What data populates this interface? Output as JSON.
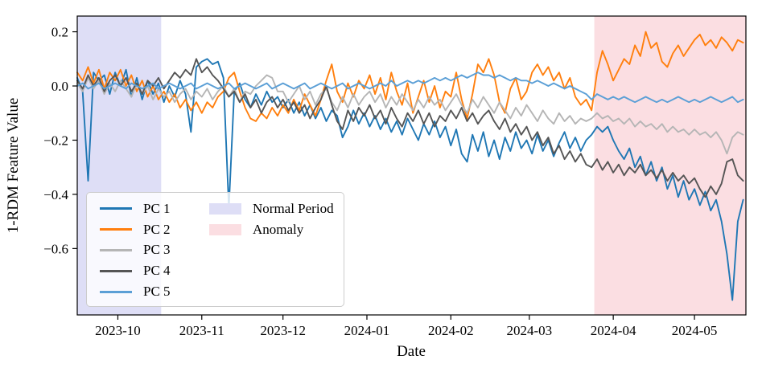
{
  "chart_data": {
    "type": "line",
    "title": "",
    "xlabel": "Date",
    "ylabel": "1-RDM Feature Value",
    "grid": false,
    "legend_position": "lower left",
    "x_start_date": "2023-09-16",
    "x_end_date": "2024-05-20",
    "x_total_days": 247,
    "sample_interval_days": 2,
    "x_tick_labels": [
      "2023-10",
      "2023-11",
      "2023-12",
      "2024-01",
      "2024-02",
      "2024-03",
      "2024-04",
      "2024-05"
    ],
    "x_tick_day_offsets": [
      15,
      46,
      76,
      107,
      138,
      167,
      198,
      228
    ],
    "y_ticks": [
      0.2,
      0.0,
      -0.2,
      -0.4,
      -0.6
    ],
    "y_tick_labels": [
      "0.2",
      "0.0",
      "−0.2",
      "−0.4",
      "−0.6"
    ],
    "ylim": [
      -0.845,
      0.258
    ],
    "bands": [
      {
        "name": "Normal Period",
        "color": "#dedef6",
        "start_day": 0,
        "end_day": 31,
        "start_date": "2023-09-16",
        "end_date": "2023-10-17"
      },
      {
        "name": "Anomaly",
        "color": "#fbdee2",
        "start_day": 191,
        "end_day": 247,
        "start_date": "2024-03-25",
        "end_date": "2024-05-20"
      }
    ],
    "series": [
      {
        "name": "PC 1",
        "color": "#1f77b4",
        "values": [
          0.03,
          -0.02,
          -0.35,
          0.05,
          0.02,
          0.04,
          -0.03,
          0.05,
          0.0,
          0.06,
          -0.04,
          0.03,
          -0.05,
          0.02,
          -0.03,
          0.01,
          -0.06,
          0.0,
          -0.04,
          0.02,
          -0.03,
          -0.17,
          0.07,
          0.09,
          0.1,
          0.08,
          0.09,
          0.03,
          -0.45,
          -0.02,
          0.01,
          -0.05,
          -0.08,
          -0.03,
          -0.07,
          -0.02,
          -0.06,
          -0.04,
          -0.08,
          -0.05,
          -0.1,
          -0.06,
          -0.11,
          -0.07,
          -0.12,
          -0.08,
          -0.13,
          -0.09,
          -0.11,
          -0.19,
          -0.15,
          -0.09,
          -0.14,
          -0.1,
          -0.15,
          -0.11,
          -0.16,
          -0.12,
          -0.17,
          -0.13,
          -0.18,
          -0.12,
          -0.16,
          -0.2,
          -0.14,
          -0.18,
          -0.13,
          -0.19,
          -0.15,
          -0.22,
          -0.16,
          -0.25,
          -0.28,
          -0.18,
          -0.24,
          -0.17,
          -0.26,
          -0.2,
          -0.27,
          -0.19,
          -0.24,
          -0.17,
          -0.23,
          -0.2,
          -0.25,
          -0.18,
          -0.24,
          -0.2,
          -0.26,
          -0.21,
          -0.17,
          -0.23,
          -0.19,
          -0.24,
          -0.2,
          -0.18,
          -0.15,
          -0.17,
          -0.15,
          -0.2,
          -0.24,
          -0.27,
          -0.23,
          -0.3,
          -0.26,
          -0.33,
          -0.28,
          -0.35,
          -0.3,
          -0.38,
          -0.33,
          -0.41,
          -0.35,
          -0.42,
          -0.38,
          -0.44,
          -0.39,
          -0.46,
          -0.42,
          -0.5,
          -0.62,
          -0.79,
          -0.5,
          -0.42
        ]
      },
      {
        "name": "PC 2",
        "color": "#ff7f0e",
        "values": [
          0.05,
          0.02,
          0.07,
          0.01,
          0.06,
          -0.01,
          0.05,
          0.02,
          0.06,
          0.0,
          0.04,
          -0.02,
          0.02,
          -0.04,
          0.0,
          -0.05,
          -0.02,
          -0.06,
          -0.03,
          -0.08,
          -0.05,
          -0.09,
          -0.06,
          -0.1,
          -0.06,
          -0.08,
          -0.04,
          -0.02,
          0.03,
          0.05,
          -0.02,
          -0.08,
          -0.12,
          -0.13,
          -0.1,
          -0.12,
          -0.08,
          -0.11,
          -0.07,
          -0.1,
          -0.05,
          -0.09,
          -0.03,
          -0.07,
          -0.11,
          -0.05,
          0.02,
          0.08,
          -0.02,
          -0.06,
          0.01,
          -0.04,
          0.02,
          -0.01,
          0.04,
          -0.03,
          0.03,
          -0.05,
          0.05,
          -0.02,
          -0.07,
          0.01,
          -0.1,
          -0.04,
          0.02,
          -0.06,
          0.0,
          -0.08,
          -0.02,
          -0.04,
          0.05,
          -0.05,
          -0.12,
          -0.03,
          0.08,
          0.05,
          0.1,
          0.04,
          -0.06,
          -0.1,
          -0.01,
          0.03,
          -0.05,
          -0.02,
          0.05,
          0.08,
          0.04,
          0.07,
          0.02,
          0.05,
          -0.01,
          0.03,
          -0.04,
          -0.07,
          -0.05,
          -0.09,
          0.05,
          0.13,
          0.08,
          0.02,
          0.06,
          0.1,
          0.08,
          0.15,
          0.11,
          0.2,
          0.14,
          0.16,
          0.09,
          0.07,
          0.12,
          0.15,
          0.11,
          0.14,
          0.17,
          0.19,
          0.15,
          0.17,
          0.14,
          0.18,
          0.16,
          0.13,
          0.17,
          0.16
        ]
      },
      {
        "name": "PC 3",
        "color": "#b5b5b5",
        "values": [
          0.01,
          -0.02,
          0.03,
          -0.01,
          0.02,
          -0.03,
          0.01,
          -0.02,
          0.02,
          -0.01,
          -0.04,
          0.01,
          -0.03,
          0.0,
          -0.05,
          -0.01,
          -0.04,
          -0.02,
          -0.06,
          -0.03,
          -0.01,
          -0.05,
          -0.02,
          -0.04,
          -0.01,
          -0.05,
          -0.02,
          0.0,
          -0.04,
          -0.01,
          -0.06,
          -0.02,
          -0.03,
          0.0,
          0.02,
          0.04,
          0.03,
          -0.02,
          -0.02,
          -0.06,
          -0.03,
          0.0,
          -0.05,
          -0.02,
          -0.07,
          -0.03,
          -0.01,
          -0.06,
          -0.09,
          -0.04,
          -0.08,
          -0.03,
          -0.07,
          -0.04,
          -0.02,
          -0.06,
          -0.03,
          -0.08,
          -0.04,
          -0.07,
          -0.03,
          -0.06,
          -0.09,
          -0.05,
          -0.08,
          -0.04,
          -0.07,
          -0.05,
          -0.09,
          -0.06,
          -0.03,
          -0.07,
          -0.1,
          -0.05,
          -0.08,
          -0.04,
          -0.07,
          -0.1,
          -0.06,
          -0.09,
          -0.12,
          -0.08,
          -0.11,
          -0.07,
          -0.1,
          -0.13,
          -0.09,
          -0.12,
          -0.14,
          -0.1,
          -0.13,
          -0.11,
          -0.14,
          -0.12,
          -0.13,
          -0.12,
          -0.1,
          -0.12,
          -0.11,
          -0.13,
          -0.12,
          -0.14,
          -0.12,
          -0.15,
          -0.13,
          -0.15,
          -0.14,
          -0.16,
          -0.14,
          -0.17,
          -0.15,
          -0.17,
          -0.16,
          -0.18,
          -0.16,
          -0.18,
          -0.17,
          -0.19,
          -0.17,
          -0.2,
          -0.25,
          -0.19,
          -0.17,
          -0.18
        ]
      },
      {
        "name": "PC 4",
        "color": "#555555",
        "values": [
          0.02,
          -0.01,
          0.04,
          0.0,
          0.03,
          -0.02,
          0.02,
          0.04,
          0.0,
          0.03,
          -0.02,
          0.01,
          -0.03,
          0.02,
          0.0,
          0.03,
          -0.01,
          0.02,
          0.05,
          0.03,
          0.06,
          0.04,
          0.1,
          0.05,
          0.07,
          0.04,
          0.02,
          -0.01,
          -0.04,
          -0.02,
          -0.06,
          -0.03,
          -0.08,
          -0.05,
          -0.1,
          -0.06,
          -0.04,
          -0.08,
          -0.05,
          -0.09,
          -0.06,
          -0.1,
          -0.07,
          -0.12,
          -0.08,
          -0.05,
          0.0,
          -0.07,
          -0.13,
          -0.16,
          -0.09,
          -0.13,
          -0.08,
          -0.11,
          -0.07,
          -0.12,
          -0.09,
          -0.14,
          -0.08,
          -0.12,
          -0.15,
          -0.1,
          -0.13,
          -0.09,
          -0.14,
          -0.1,
          -0.15,
          -0.11,
          -0.13,
          -0.09,
          -0.12,
          -0.08,
          -0.13,
          -0.1,
          -0.14,
          -0.11,
          -0.09,
          -0.13,
          -0.16,
          -0.12,
          -0.17,
          -0.14,
          -0.18,
          -0.15,
          -0.2,
          -0.17,
          -0.22,
          -0.19,
          -0.25,
          -0.22,
          -0.27,
          -0.24,
          -0.28,
          -0.25,
          -0.29,
          -0.3,
          -0.27,
          -0.31,
          -0.28,
          -0.32,
          -0.29,
          -0.33,
          -0.3,
          -0.32,
          -0.29,
          -0.33,
          -0.31,
          -0.34,
          -0.31,
          -0.35,
          -0.32,
          -0.35,
          -0.33,
          -0.36,
          -0.34,
          -0.38,
          -0.41,
          -0.37,
          -0.4,
          -0.36,
          -0.28,
          -0.27,
          -0.33,
          -0.35
        ]
      },
      {
        "name": "PC 5",
        "color": "#5b9fd6",
        "values": [
          0.0,
          0.01,
          -0.01,
          0.0,
          0.01,
          -0.01,
          0.0,
          0.01,
          0.0,
          -0.01,
          0.01,
          0.0,
          -0.01,
          0.0,
          0.01,
          -0.01,
          0.0,
          0.01,
          0.0,
          -0.01,
          0.0,
          0.01,
          -0.01,
          0.0,
          0.01,
          0.0,
          -0.01,
          0.0,
          0.01,
          -0.01,
          0.0,
          0.01,
          0.0,
          -0.01,
          0.0,
          0.01,
          -0.01,
          0.0,
          0.01,
          0.0,
          -0.01,
          0.0,
          0.01,
          -0.01,
          0.0,
          0.01,
          0.0,
          -0.01,
          0.0,
          0.01,
          -0.01,
          0.0,
          0.01,
          0.0,
          -0.01,
          0.0,
          0.01,
          0.0,
          0.02,
          0.0,
          0.01,
          0.02,
          0.01,
          0.02,
          0.01,
          0.02,
          0.03,
          0.02,
          0.03,
          0.02,
          0.03,
          0.04,
          0.03,
          0.04,
          0.05,
          0.04,
          0.04,
          0.03,
          0.04,
          0.03,
          0.02,
          0.03,
          0.02,
          0.02,
          0.01,
          0.02,
          0.01,
          0.0,
          0.01,
          0.0,
          -0.01,
          0.0,
          -0.01,
          -0.02,
          -0.03,
          -0.05,
          -0.03,
          -0.04,
          -0.05,
          -0.04,
          -0.05,
          -0.04,
          -0.05,
          -0.06,
          -0.05,
          -0.04,
          -0.05,
          -0.06,
          -0.05,
          -0.06,
          -0.05,
          -0.04,
          -0.05,
          -0.06,
          -0.05,
          -0.06,
          -0.05,
          -0.04,
          -0.05,
          -0.06,
          -0.05,
          -0.04,
          -0.06,
          -0.05
        ]
      }
    ]
  },
  "legend": {
    "series_labels": [
      "PC 1",
      "PC 2",
      "PC 3",
      "PC 4",
      "PC 5"
    ],
    "band_labels": [
      "Normal Period",
      "Anomaly"
    ]
  },
  "style": {
    "spine_color": "#000000",
    "background": "#ffffff"
  }
}
